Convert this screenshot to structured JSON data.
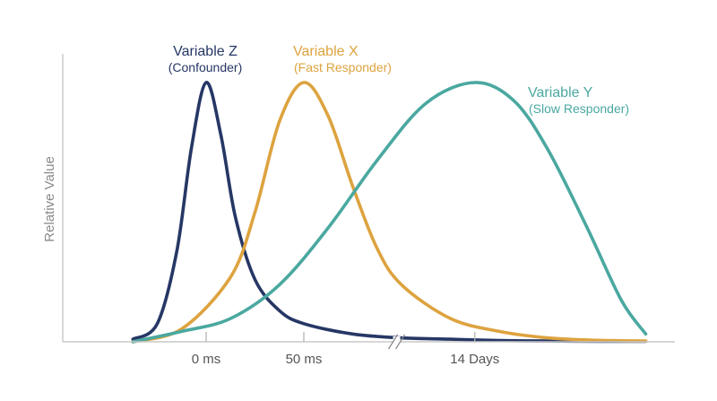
{
  "chart_data": {
    "type": "line",
    "title": "",
    "xlabel": "",
    "ylabel": "Relative Value",
    "x_ticks": [
      "0 ms",
      "50 ms",
      "14 Days"
    ],
    "axis_break": "between 50 ms and 14 Days",
    "ylim": [
      0,
      1
    ],
    "grid": false,
    "legend": "direct labels next to curve peaks",
    "series": [
      {
        "name": "Variable Z",
        "sublabel": "(Confounder)",
        "color": "#263765",
        "peak_at": "0 ms",
        "peak_value": 1.0,
        "x": [
          -0.75,
          -0.5,
          -0.3,
          -0.15,
          0,
          0.15,
          0.3,
          0.5,
          0.75,
          1.0,
          1.5,
          2.0,
          2.5,
          3.0,
          3.5,
          4.0,
          4.5
        ],
        "values": [
          0.01,
          0.07,
          0.35,
          0.75,
          1.0,
          0.8,
          0.48,
          0.24,
          0.12,
          0.07,
          0.03,
          0.015,
          0.01,
          0.005,
          0.003,
          0.002,
          0.002
        ]
      },
      {
        "name": "Variable X",
        "sublabel": "(Fast Responder)",
        "color": "#DDA33F",
        "peak_at": "50 ms",
        "peak_value": 1.0,
        "x": [
          -0.75,
          -0.25,
          0.25,
          0.5,
          0.75,
          1.0,
          1.25,
          1.5,
          1.75,
          2.0,
          2.5,
          3.0,
          3.5,
          4.0,
          4.5
        ],
        "values": [
          0.0,
          0.05,
          0.25,
          0.5,
          0.85,
          1.0,
          0.87,
          0.6,
          0.36,
          0.22,
          0.09,
          0.04,
          0.015,
          0.006,
          0.003
        ]
      },
      {
        "name": "Variable Y",
        "sublabel": "(Slow Responder)",
        "color": "#4AA8A0",
        "peak_at": "14 Days",
        "peak_value": 1.0,
        "x": [
          -0.75,
          -0.25,
          0.25,
          0.75,
          1.25,
          1.75,
          2.25,
          2.75,
          3.15,
          3.5,
          3.9,
          4.25,
          4.5
        ],
        "values": [
          0.0,
          0.04,
          0.09,
          0.22,
          0.44,
          0.7,
          0.92,
          1.0,
          0.93,
          0.74,
          0.44,
          0.16,
          0.03
        ]
      }
    ]
  }
}
